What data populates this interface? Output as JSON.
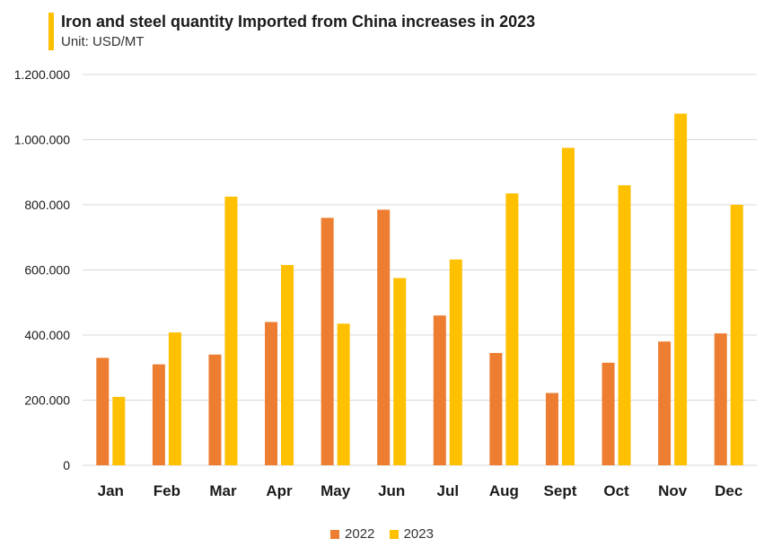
{
  "header": {
    "title": "Iron and steel quantity Imported from China increases in 2023",
    "subtitle": "Unit: USD/MT",
    "accent_color": "#FFC000"
  },
  "chart_data": {
    "type": "bar",
    "title": "Iron and steel quantity Imported from China increases in 2023",
    "subtitle": "Unit: USD/MT",
    "categories": [
      "Jan",
      "Feb",
      "Mar",
      "Apr",
      "May",
      "Jun",
      "Jul",
      "Aug",
      "Sept",
      "Oct",
      "Nov",
      "Dec"
    ],
    "series": [
      {
        "name": "2022",
        "color": "#ED7D31",
        "values": [
          330000,
          310000,
          340000,
          440000,
          760000,
          785000,
          460000,
          345000,
          222000,
          315000,
          380000,
          405000
        ]
      },
      {
        "name": "2023",
        "color": "#FFC000",
        "values": [
          210000,
          408000,
          825000,
          615000,
          435000,
          575000,
          632000,
          835000,
          975000,
          860000,
          1080000,
          800000
        ]
      }
    ],
    "y_ticks": [
      "0",
      "200.000",
      "400.000",
      "600.000",
      "800.000",
      "1.000.000",
      "1.200.000"
    ],
    "ylim": [
      0,
      1200000
    ],
    "grid": true,
    "legend_position": "bottom-center"
  }
}
